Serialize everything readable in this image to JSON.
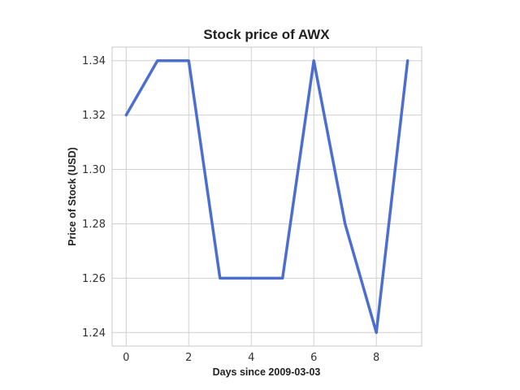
{
  "chart_data": {
    "type": "line",
    "title": "Stock price of AWX",
    "xlabel": "Days since 2009-03-03",
    "ylabel": "Price of Stock (USD)",
    "xlim": [
      -0.45,
      9.45
    ],
    "ylim": [
      1.235,
      1.345
    ],
    "x_ticks": [
      0,
      2,
      4,
      6,
      8
    ],
    "y_ticks": [
      1.24,
      1.26,
      1.28,
      1.3,
      1.32,
      1.34
    ],
    "y_tick_labels": [
      "1.24",
      "1.26",
      "1.28",
      "1.30",
      "1.32",
      "1.34"
    ],
    "grid": true,
    "series": [
      {
        "x": [
          0,
          1,
          2,
          3,
          4,
          5,
          6,
          7,
          8,
          9
        ],
        "values": [
          1.32,
          1.34,
          1.34,
          1.26,
          1.26,
          1.26,
          1.34,
          1.28,
          1.24,
          1.34
        ],
        "color": "#4c6fcf"
      }
    ]
  }
}
